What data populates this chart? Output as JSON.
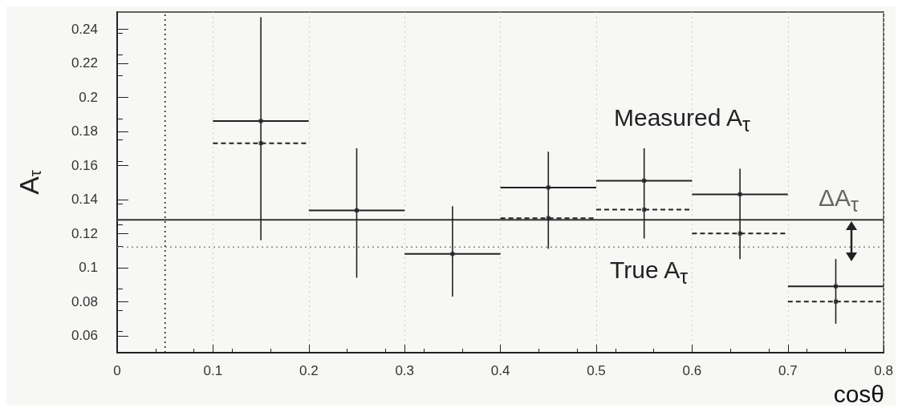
{
  "chart_data": {
    "type": "scatter",
    "xlabel": "cosθ",
    "ylabel": "A$_{τ}$",
    "x": [
      0.15,
      0.25,
      0.35,
      0.45,
      0.55,
      0.65,
      0.75
    ],
    "xlim": [
      0,
      0.8
    ],
    "ylim": [
      0.05,
      0.25
    ],
    "xticks": [
      0,
      0.1,
      0.2,
      0.3,
      0.4,
      0.5,
      0.6,
      0.7,
      0.8
    ],
    "yticks": [
      0.06,
      0.08,
      0.1,
      0.12,
      0.14,
      0.16,
      0.18,
      0.2,
      0.22,
      0.24
    ],
    "grid": "x",
    "series": [
      {
        "color": "#222222",
        "line_style": "solid",
        "values": [
          0.186,
          0.1335,
          0.108,
          0.147,
          0.151,
          0.143,
          0.089
        ],
        "xerrors": [
          0.05,
          0.05,
          0.05,
          0.05,
          0.05,
          0.05,
          0.05
        ],
        "errors": [
          [
            0.116,
            0.247
          ],
          [
            0.094,
            0.17
          ],
          [
            0.083,
            0.136
          ],
          [
            0.111,
            0.168
          ],
          [
            0.117,
            0.17
          ],
          [
            0.105,
            0.158
          ],
          [
            0.067,
            0.105
          ]
        ]
      },
      {
        "color": "#222222",
        "line_style": "dashed",
        "values": [
          0.173,
          null,
          null,
          0.129,
          0.134,
          0.12,
          0.08
        ],
        "xerrors": [
          0.05,
          null,
          null,
          0.05,
          0.05,
          0.05,
          0.05
        ]
      }
    ],
    "ref_lines": [
      {
        "axis": "y",
        "value": 0.128,
        "label": "Measured A$_{τ}$",
        "line_style": "solid",
        "color": "#333333"
      },
      {
        "axis": "y",
        "value": 0.112,
        "label": "True A$_{τ}$",
        "line_style": "dotted",
        "color": "#888888"
      },
      {
        "axis": "x",
        "value": 0.05,
        "line_style": "dotted",
        "color": "#222222"
      }
    ],
    "annotations": [
      "ΔA$_{τ}$"
    ]
  }
}
